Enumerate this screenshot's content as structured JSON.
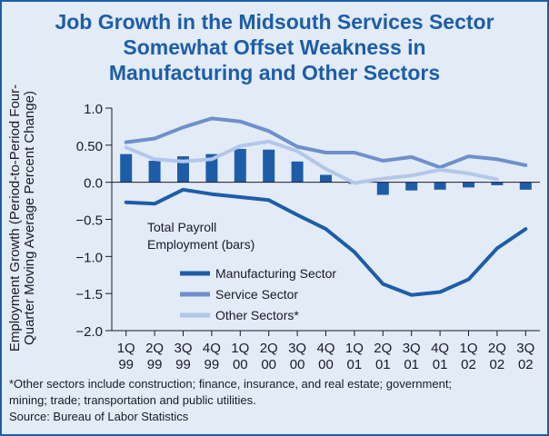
{
  "title_lines": [
    "Job Growth in the Midsouth Services Sector",
    "Somewhat Offset Weakness in",
    "Manufacturing and Other Sectors"
  ],
  "colors": {
    "frame": "#1d5da8",
    "background": "#e2ebf6",
    "bars": "#1d5da8",
    "manufacturing": "#1d5da8",
    "service": "#6f8fcb",
    "other": "#b3c7e8",
    "title": "#1d5da8"
  },
  "chart_data": {
    "type": "line",
    "title": "Job Growth in the Midsouth Services Sector Somewhat Offset Weakness in Manufacturing and Other Sectors",
    "ylabel_lines": [
      "Employment Growth (Period-to-Period Four-",
      "Quarter Moving Average Percent Change)"
    ],
    "ylim": [
      -2.0,
      1.0
    ],
    "yticks": [
      1.0,
      0.5,
      0.0,
      -0.5,
      -1.0,
      -1.5,
      -2.0
    ],
    "ytick_labels": [
      "1.0",
      "0.50",
      "0.0",
      "−0.5",
      "−1.0",
      "−1.5",
      "−2.0"
    ],
    "categories": [
      {
        "q": "1Q",
        "yr": "99"
      },
      {
        "q": "2Q",
        "yr": "99"
      },
      {
        "q": "3Q",
        "yr": "99"
      },
      {
        "q": "4Q",
        "yr": "99"
      },
      {
        "q": "1Q",
        "yr": "00"
      },
      {
        "q": "2Q",
        "yr": "00"
      },
      {
        "q": "3Q",
        "yr": "00"
      },
      {
        "q": "4Q",
        "yr": "00"
      },
      {
        "q": "1Q",
        "yr": "01"
      },
      {
        "q": "2Q",
        "yr": "01"
      },
      {
        "q": "3Q",
        "yr": "01"
      },
      {
        "q": "4Q",
        "yr": "01"
      },
      {
        "q": "1Q",
        "yr": "02"
      },
      {
        "q": "2Q",
        "yr": "02"
      },
      {
        "q": "3Q",
        "yr": "02"
      }
    ],
    "bars_label_lines": [
      "Total Payroll",
      "Employment (bars)"
    ],
    "bars": [
      0.38,
      0.29,
      0.35,
      0.38,
      0.45,
      0.44,
      0.28,
      0.1,
      -0.02,
      -0.17,
      -0.11,
      -0.1,
      -0.07,
      -0.04,
      -0.1
    ],
    "series": [
      {
        "name": "Manufacturing Sector",
        "key": "manufacturing",
        "values": [
          -0.27,
          -0.29,
          -0.1,
          -0.16,
          -0.2,
          -0.24,
          -0.44,
          -0.63,
          -0.94,
          -1.37,
          -1.52,
          -1.48,
          -1.31,
          -0.89,
          -0.63
        ]
      },
      {
        "name": "Service Sector",
        "key": "service",
        "values": [
          0.54,
          0.59,
          0.74,
          0.86,
          0.82,
          0.69,
          0.48,
          0.4,
          0.4,
          0.29,
          0.34,
          0.2,
          0.35,
          0.31,
          0.23
        ]
      },
      {
        "name": "Other Sectors*",
        "key": "other",
        "values": [
          0.47,
          0.31,
          0.28,
          0.31,
          0.49,
          0.55,
          0.42,
          0.18,
          -0.01,
          0.05,
          0.09,
          0.17,
          0.12,
          0.04,
          null
        ]
      }
    ],
    "grid": false,
    "legend": "lower-left inside plot"
  },
  "footnote_lines": [
    "*Other sectors include construction; finance, insurance, and real estate; government;",
    "mining; trade; transportation and public utilities."
  ],
  "source": "Source: Bureau of Labor Statistics"
}
